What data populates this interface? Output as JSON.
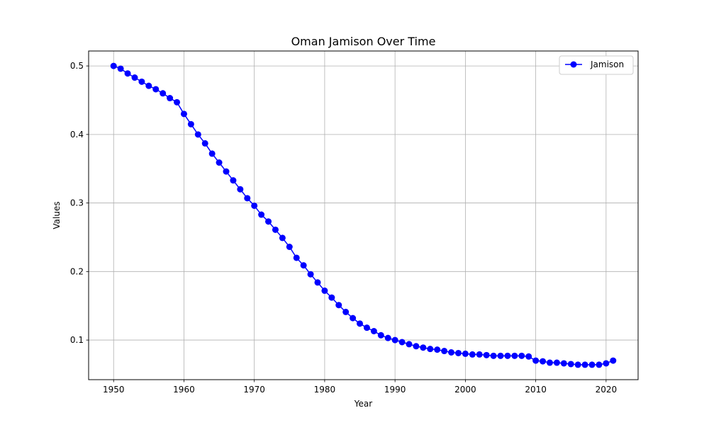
{
  "chart_data": {
    "type": "line",
    "title": "Oman Jamison Over Time",
    "xlabel": "Year",
    "ylabel": "Values",
    "xlim": [
      1946.45,
      2024.55
    ],
    "ylim": [
      0.0422,
      0.5218
    ],
    "xticks": [
      1950,
      1960,
      1970,
      1980,
      1990,
      2000,
      2010,
      2020
    ],
    "yticks": [
      0.1,
      0.2,
      0.3,
      0.4,
      0.5
    ],
    "xtick_labels": [
      "1950",
      "1960",
      "1970",
      "1980",
      "1990",
      "2000",
      "2010",
      "2020"
    ],
    "ytick_labels": [
      "0.1",
      "0.2",
      "0.3",
      "0.4",
      "0.5"
    ],
    "grid": true,
    "legend_position": "top-right",
    "color": "#0000ff",
    "series": [
      {
        "name": "Jamison",
        "x": [
          1950,
          1951,
          1952,
          1953,
          1954,
          1955,
          1956,
          1957,
          1958,
          1959,
          1960,
          1961,
          1962,
          1963,
          1964,
          1965,
          1966,
          1967,
          1968,
          1969,
          1970,
          1971,
          1972,
          1973,
          1974,
          1975,
          1976,
          1977,
          1978,
          1979,
          1980,
          1981,
          1982,
          1983,
          1984,
          1985,
          1986,
          1987,
          1988,
          1989,
          1990,
          1991,
          1992,
          1993,
          1994,
          1995,
          1996,
          1997,
          1998,
          1999,
          2000,
          2001,
          2002,
          2003,
          2004,
          2005,
          2006,
          2007,
          2008,
          2009,
          2010,
          2011,
          2012,
          2013,
          2014,
          2015,
          2016,
          2017,
          2018,
          2019,
          2020,
          2021
        ],
        "values": [
          0.5,
          0.496,
          0.489,
          0.483,
          0.477,
          0.471,
          0.466,
          0.46,
          0.453,
          0.447,
          0.43,
          0.415,
          0.4,
          0.387,
          0.372,
          0.359,
          0.346,
          0.333,
          0.32,
          0.307,
          0.296,
          0.283,
          0.273,
          0.261,
          0.249,
          0.236,
          0.22,
          0.209,
          0.196,
          0.184,
          0.172,
          0.162,
          0.151,
          0.141,
          0.132,
          0.124,
          0.118,
          0.113,
          0.107,
          0.103,
          0.1,
          0.097,
          0.094,
          0.091,
          0.089,
          0.087,
          0.086,
          0.084,
          0.082,
          0.081,
          0.08,
          0.079,
          0.079,
          0.078,
          0.077,
          0.077,
          0.077,
          0.077,
          0.077,
          0.076,
          0.07,
          0.069,
          0.067,
          0.067,
          0.066,
          0.065,
          0.064,
          0.064,
          0.064,
          0.064,
          0.066,
          0.07
        ]
      }
    ]
  }
}
